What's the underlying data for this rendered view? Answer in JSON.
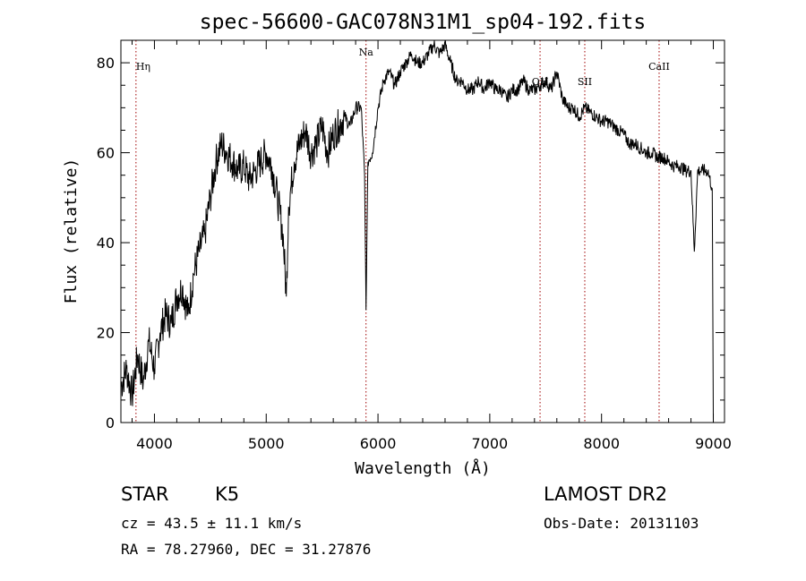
{
  "chart_data": {
    "type": "line",
    "title": "spec-56600-GAC078N31M1_sp04-192.fits",
    "xlabel": "Wavelength (Å)",
    "ylabel": "Flux (relative)",
    "xlim": [
      3700,
      9100
    ],
    "ylim": [
      0,
      85
    ],
    "xticks": [
      4000,
      5000,
      6000,
      7000,
      8000,
      9000
    ],
    "yticks": [
      0,
      20,
      40,
      60,
      80
    ],
    "grid": false,
    "series": [
      {
        "x": [
          3700,
          3750,
          3800,
          3850,
          3900,
          3950,
          4000,
          4050,
          4100,
          4150,
          4200,
          4250,
          4300,
          4350,
          4400,
          4450,
          4500,
          4550,
          4600,
          4650,
          4700,
          4750,
          4800,
          4850,
          4900,
          4950,
          5000,
          5050,
          5100,
          5150,
          5180,
          5200,
          5250,
          5300,
          5350,
          5400,
          5450,
          5500,
          5550,
          5600,
          5650,
          5700,
          5750,
          5800,
          5850,
          5880,
          5893,
          5910,
          5950,
          6000,
          6050,
          6100,
          6150,
          6200,
          6250,
          6300,
          6350,
          6400,
          6450,
          6500,
          6550,
          6600,
          6650,
          6700,
          6750,
          6800,
          6850,
          6900,
          6950,
          7000,
          7050,
          7100,
          7150,
          7200,
          7250,
          7300,
          7350,
          7400,
          7450,
          7500,
          7550,
          7600,
          7650,
          7700,
          7750,
          7800,
          7850,
          7900,
          7950,
          8000,
          8050,
          8100,
          8150,
          8200,
          8250,
          8300,
          8350,
          8400,
          8450,
          8500,
          8550,
          8600,
          8650,
          8700,
          8750,
          8800,
          8830,
          8860,
          8900,
          8950,
          8990,
          9000
        ],
        "y": [
          8,
          12,
          6,
          15,
          9,
          18,
          12,
          20,
          24,
          22,
          28,
          30,
          24,
          33,
          38,
          42,
          50,
          58,
          62,
          60,
          58,
          56,
          57,
          54,
          56,
          58,
          60,
          57,
          50,
          42,
          28,
          48,
          58,
          62,
          65,
          60,
          62,
          66,
          60,
          64,
          66,
          68,
          66,
          70,
          70,
          55,
          25,
          58,
          60,
          70,
          76,
          78,
          75,
          78,
          80,
          82,
          80,
          80,
          82,
          84,
          82,
          84,
          80,
          76,
          76,
          74,
          74,
          76,
          74,
          76,
          74,
          74,
          72,
          74,
          74,
          76,
          74,
          74,
          75,
          76,
          74,
          78,
          72,
          70,
          70,
          68,
          70,
          69,
          68,
          67,
          67,
          66,
          65,
          64,
          62,
          62,
          61,
          60,
          60,
          59,
          59,
          58,
          57,
          57,
          56,
          56,
          38,
          56,
          56,
          56,
          52,
          0
        ]
      }
    ],
    "lines": [
      {
        "label": "Hη",
        "x": 3835
      },
      {
        "label": "Na",
        "x": 5893
      },
      {
        "label": "OH",
        "x": 7450
      },
      {
        "label": "SII",
        "x": 7850
      },
      {
        "label": "CaII",
        "x": 8515
      }
    ]
  },
  "info": {
    "object_type": "STAR",
    "subclass": "K5",
    "survey": "LAMOST DR2",
    "cz": "cz = 43.5 ± 11.1 km/s",
    "obs_date": "Obs-Date: 20131103",
    "coords": "RA =  78.27960, DEC =  31.27876"
  }
}
